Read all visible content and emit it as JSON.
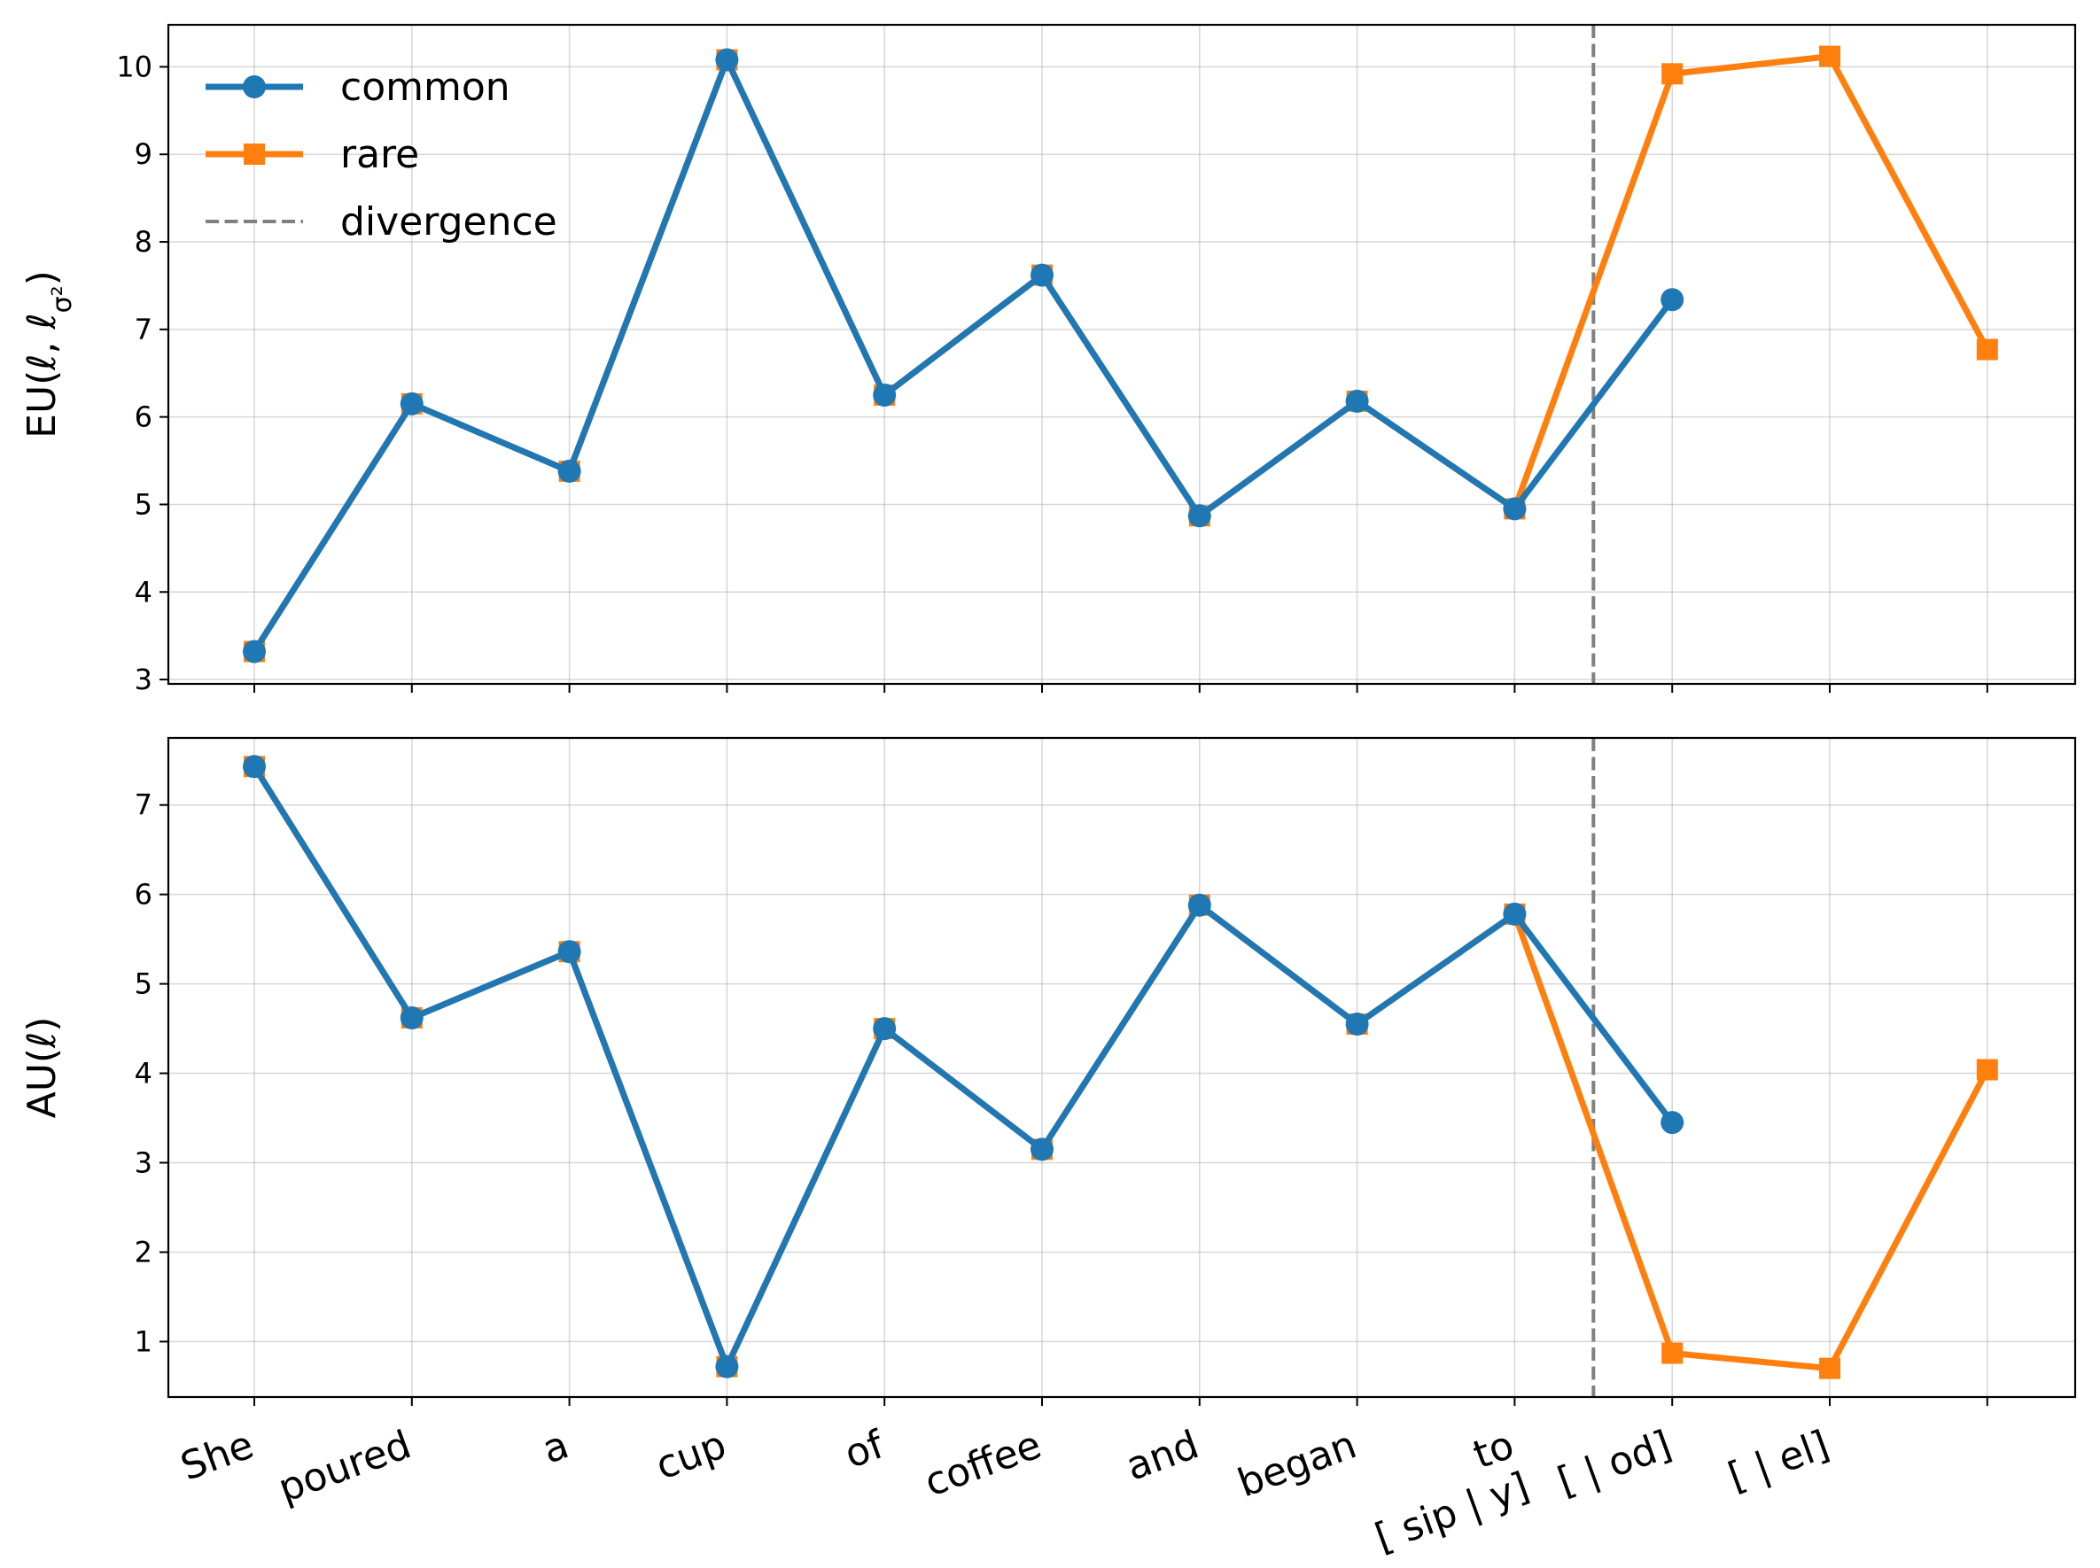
{
  "chart_data": {
    "type": "line",
    "x": [
      "She",
      "poured",
      "a",
      "cup",
      "of",
      "coffee",
      "and",
      "began",
      "to",
      "[ sip |  y]",
      "[ | od]",
      "[ | el]"
    ],
    "x_tick_lines": [
      [
        "She"
      ],
      [
        "poured"
      ],
      [
        "a"
      ],
      [
        "cup"
      ],
      [
        "of"
      ],
      [
        "coffee"
      ],
      [
        "and"
      ],
      [
        "began"
      ],
      [
        "to",
        "[ sip |  y]"
      ],
      [
        "[ | od]"
      ],
      [
        "[ | el]"
      ]
    ],
    "legend": {
      "placement": "upper-left",
      "entries": [
        {
          "label": "common",
          "color": "#1f77b4",
          "marker": "circle",
          "style": "solid"
        },
        {
          "label": "rare",
          "color": "#ff7f0e",
          "marker": "square",
          "style": "solid"
        },
        {
          "label": "divergence",
          "color": "#808080",
          "marker": "none",
          "style": "dashed"
        }
      ]
    },
    "colors": {
      "common": "#1f77b4",
      "rare": "#ff7f0e",
      "divergence": "#808080"
    },
    "divergence_x": 8.5,
    "panels": [
      {
        "ylabel": "EU(ℓ, ℓσ²)",
        "ylabel_main": "EU(ℓ, ℓ",
        "ylabel_sub": "σ²",
        "ylabel_end": ")",
        "ylim": [
          2.95,
          10.48
        ],
        "yticks": [
          3,
          4,
          5,
          6,
          7,
          8,
          9,
          10
        ],
        "grid": true,
        "show_xtick_labels": false,
        "show_legend": true,
        "series": [
          {
            "name": "rare",
            "x_index": [
              0,
              1,
              2,
              3,
              4,
              5,
              6,
              7,
              8,
              9,
              10,
              11
            ],
            "values": [
              3.32,
              6.15,
              5.38,
              10.08,
              6.25,
              7.62,
              4.87,
              6.18,
              4.95,
              9.92,
              10.12,
              6.77
            ]
          },
          {
            "name": "common",
            "x_index": [
              0,
              1,
              2,
              3,
              4,
              5,
              6,
              7,
              8,
              9
            ],
            "values": [
              3.32,
              6.15,
              5.38,
              10.08,
              6.25,
              7.62,
              4.87,
              6.18,
              4.95,
              7.34
            ]
          }
        ]
      },
      {
        "ylabel": "AU(ℓ)",
        "ylim": [
          0.38,
          7.75
        ],
        "yticks": [
          1,
          2,
          3,
          4,
          5,
          6,
          7
        ],
        "grid": true,
        "show_xtick_labels": true,
        "show_legend": false,
        "series": [
          {
            "name": "rare",
            "x_index": [
              0,
              1,
              2,
              3,
              4,
              5,
              6,
              7,
              8,
              9,
              10,
              11
            ],
            "values": [
              7.43,
              4.62,
              5.36,
              0.72,
              4.5,
              3.15,
              5.88,
              4.55,
              5.78,
              0.87,
              0.7,
              4.04
            ]
          },
          {
            "name": "common",
            "x_index": [
              0,
              1,
              2,
              3,
              4,
              5,
              6,
              7,
              8,
              9
            ],
            "values": [
              7.43,
              4.62,
              5.36,
              0.72,
              4.5,
              3.15,
              5.88,
              4.55,
              5.78,
              3.45
            ]
          }
        ]
      }
    ]
  }
}
